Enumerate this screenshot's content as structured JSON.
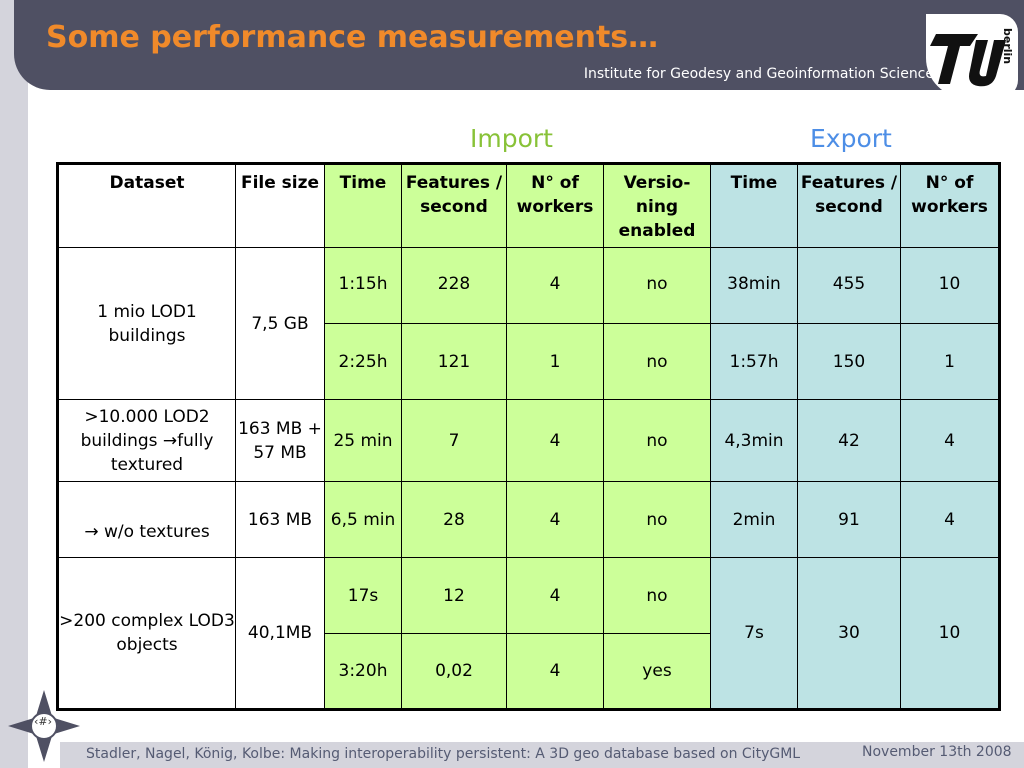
{
  "header": {
    "title": "Some performance measurements…",
    "institute": "Institute for Geodesy and Geoinformation Science",
    "logo_text": "berlin"
  },
  "sections": {
    "import": "Import",
    "export": "Export"
  },
  "table": {
    "headers": [
      "Dataset",
      "File size",
      "Time",
      "Features / second",
      "N° of workers",
      "Versio-ning enabled",
      "Time",
      "Features / second",
      "N° of workers"
    ],
    "rows": [
      {
        "dataset": "1 mio LOD1 buildings",
        "size": "7,5 GB",
        "sub": [
          [
            "1:15h",
            "228",
            "4",
            "no",
            "38min",
            "455",
            "10"
          ],
          [
            "2:25h",
            "121",
            "1",
            "no",
            "1:57h",
            "150",
            "1"
          ]
        ]
      },
      {
        "dataset": ">10.000 LOD2 buildings →fully textured",
        "size": "163 MB + 57 MB",
        "sub": [
          [
            "25 min",
            "7",
            "4",
            "no",
            "4,3min",
            "42",
            "4"
          ]
        ]
      },
      {
        "dataset": "→ w/o textures",
        "size": "163 MB",
        "sub": [
          [
            "6,5 min",
            "28",
            "4",
            "no",
            "2min",
            "91",
            "4"
          ]
        ]
      },
      {
        "dataset": ">200 complex LOD3 objects",
        "size": "40,1MB",
        "sub": [
          [
            "17s",
            "12",
            "4",
            "no"
          ],
          [
            "3:20h",
            "0,02",
            "4",
            "yes"
          ]
        ],
        "export": [
          "7s",
          "30",
          "10"
        ]
      }
    ]
  },
  "footer": {
    "slide_number": "‹#›",
    "citation": "Stadler, Nagel, König, Kolbe: Making interoperability persistent: A 3D geo database based on CityGML",
    "date": "November 13th 2008"
  }
}
